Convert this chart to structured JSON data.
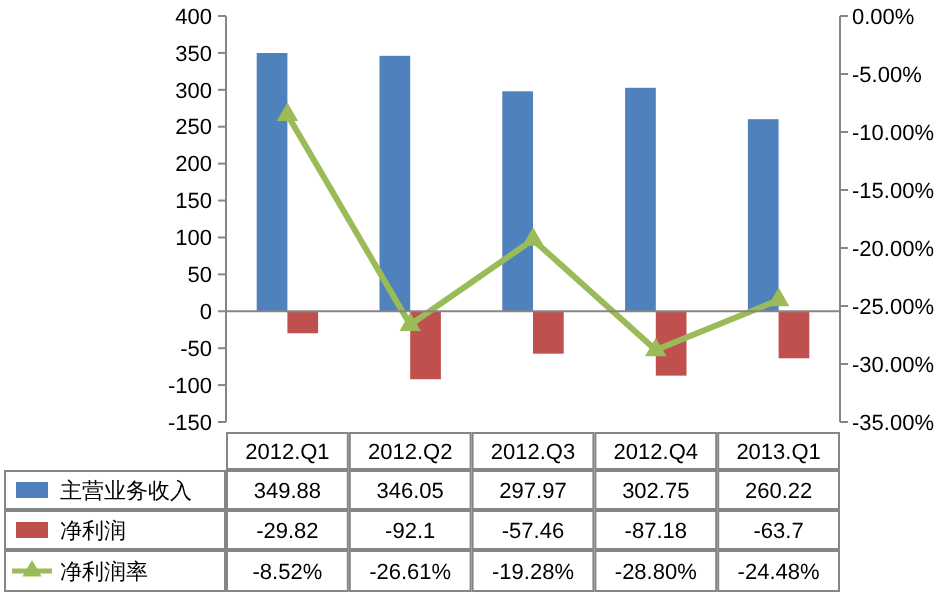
{
  "chart_data": {
    "type": "bar",
    "categories": [
      "2012.Q1",
      "2012.Q2",
      "2012.Q3",
      "2012.Q4",
      "2013.Q1"
    ],
    "series": [
      {
        "name": "主营业务收入",
        "color": "#4f81bd",
        "values": [
          349.88,
          346.05,
          297.97,
          302.75,
          260.22
        ],
        "value_labels": [
          "349.88",
          "346.05",
          "297.97",
          "302.75",
          "260.22"
        ]
      },
      {
        "name": "净利润",
        "color": "#c0504d",
        "values": [
          -29.82,
          -92.1,
          -57.46,
          -87.18,
          -63.7
        ],
        "value_labels": [
          "-29.82",
          "-92.1",
          "-57.46",
          "-87.18",
          "-63.7"
        ]
      },
      {
        "name": "净利润率",
        "type": "line",
        "axis": "y2",
        "color": "#9bbb59",
        "marker": "triangle",
        "values": [
          -8.52,
          -26.61,
          -19.28,
          -28.8,
          -24.48
        ],
        "value_labels": [
          "-8.52%",
          "-26.61%",
          "-19.28%",
          "-28.80%",
          "-24.48%"
        ]
      }
    ],
    "ylim": [
      -150,
      400
    ],
    "yticks": [
      -150,
      -100,
      -50,
      0,
      50,
      100,
      150,
      200,
      250,
      300,
      350,
      400
    ],
    "y2lim": [
      -35,
      0
    ],
    "y2ticks": [
      {
        "value": -35,
        "label": "-35.00%"
      },
      {
        "value": -30,
        "label": "-30.00%"
      },
      {
        "value": -25,
        "label": "-25.00%"
      },
      {
        "value": -20,
        "label": "-20.00%"
      },
      {
        "value": -15,
        "label": "-15.00%"
      },
      {
        "value": -10,
        "label": "-10.00%"
      },
      {
        "value": -5,
        "label": "-5.00%"
      },
      {
        "value": 0,
        "label": "0.00%"
      }
    ],
    "legend": "bottom"
  }
}
